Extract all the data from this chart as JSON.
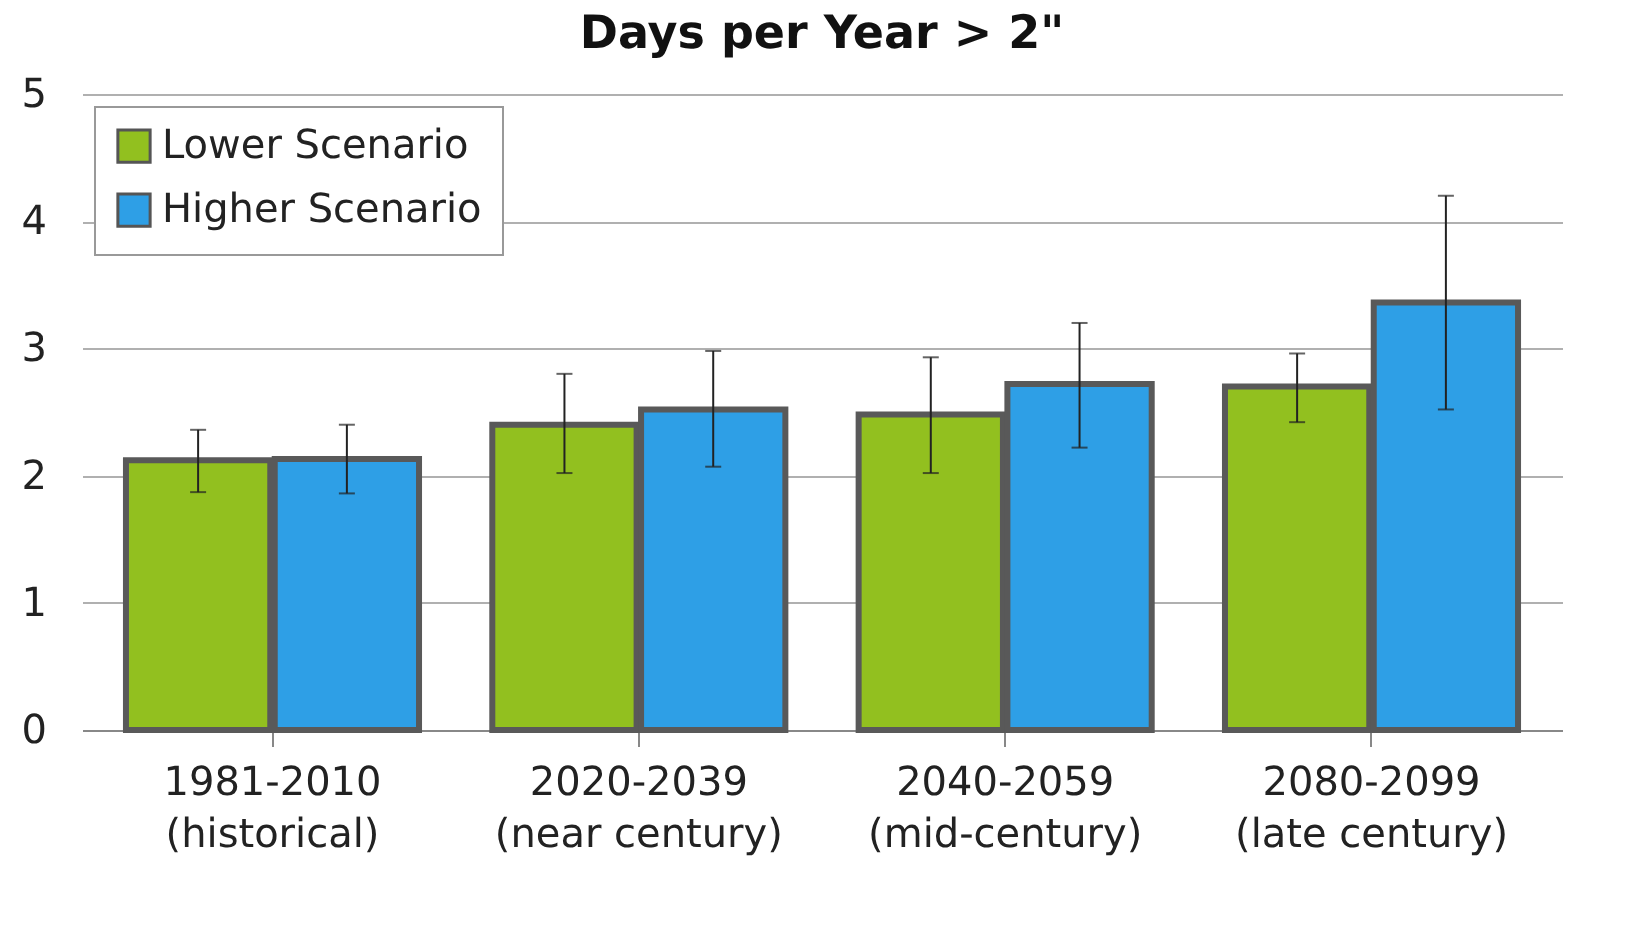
{
  "chart_data": {
    "type": "bar",
    "title": "Days per Year > 2\"",
    "categories": [
      "1981-2010\n(historical)",
      "2020-2039\n(near century)",
      "2040-2059\n(mid-century)",
      "2080-2099\n(late century)"
    ],
    "series": [
      {
        "name": "Lower Scenario",
        "color": "#92c01f",
        "values": [
          2.12,
          2.4,
          2.48,
          2.7
        ],
        "errors": [
          [
            1.87,
            2.36
          ],
          [
            2.02,
            2.8
          ],
          [
            2.02,
            2.93
          ],
          [
            2.42,
            2.96
          ]
        ]
      },
      {
        "name": "Higher Scenario",
        "color": "#2e9fe6",
        "values": [
          2.13,
          2.52,
          2.72,
          3.36
        ],
        "errors": [
          [
            1.86,
            2.4
          ],
          [
            2.07,
            2.98
          ],
          [
            2.22,
            3.2
          ],
          [
            2.52,
            4.2
          ]
        ]
      }
    ],
    "ylim": [
      0,
      5
    ],
    "yticks": [
      0,
      1,
      2,
      3,
      4,
      5
    ],
    "grid": "y",
    "legend": "top left"
  }
}
